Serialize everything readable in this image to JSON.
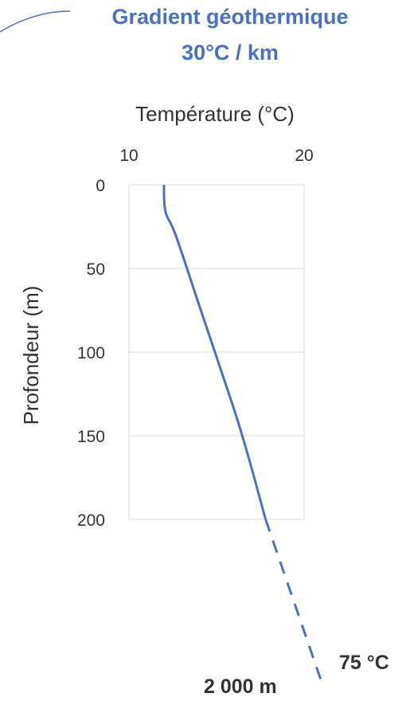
{
  "title": "Gradient géothermique",
  "subtitle": "30°C / km",
  "chart_data": {
    "type": "line",
    "xlabel": "Température (°C)",
    "ylabel": "Profondeur (m)",
    "xlim": [
      10,
      20
    ],
    "ylim": [
      0,
      200
    ],
    "y_inverted": true,
    "x_axis_position": "top",
    "x_ticks": [
      "10",
      "20"
    ],
    "y_ticks": [
      "0",
      "50",
      "100",
      "150",
      "200"
    ],
    "grid": "horizontal",
    "series": [
      {
        "points": [
          {
            "x": 12.0,
            "y": 0
          },
          {
            "x": 12.0,
            "y": 10
          },
          {
            "x": 12.1,
            "y": 18
          },
          {
            "x": 12.5,
            "y": 25
          },
          {
            "x": 13.0,
            "y": 40
          },
          {
            "x": 14.1,
            "y": 75
          },
          {
            "x": 15.3,
            "y": 112
          },
          {
            "x": 16.5,
            "y": 150
          },
          {
            "x": 17.8,
            "y": 200
          }
        ],
        "color": "#4a72c4",
        "style": "solid"
      }
    ],
    "extrapolation": {
      "color": "#4a72c4",
      "style": "dashed",
      "end_depth_label": "2 000 m",
      "end_temperature_label": "75 °C"
    }
  },
  "colors": {
    "accent": "#4a72c4",
    "text": "#333333",
    "grid": "#d9d9d9"
  }
}
